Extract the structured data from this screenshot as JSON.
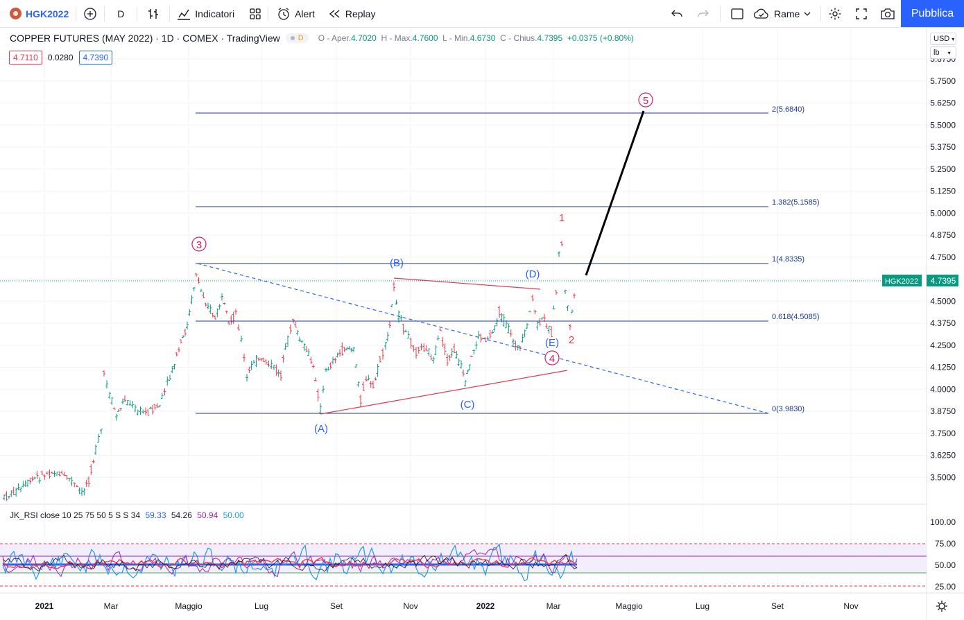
{
  "toolbar": {
    "symbol": "HGK2022",
    "interval": "D",
    "indicators": "Indicatori",
    "alert": "Alert",
    "replay": "Replay",
    "sync": "Rame",
    "publish": "Pubblica"
  },
  "legend": {
    "title": "COPPER FUTURES (MAY 2022) · 1D · COMEX · TradingView",
    "badge": "D",
    "open_label": "O - Aper.",
    "open": "4.7020",
    "high_label": "H - Max.",
    "high": "4.7600",
    "low_label": "L - Min.",
    "low": "4.6730",
    "close_label": "C - Chius.",
    "close": "4.7395",
    "change": "+0.0375 (+0.80%)"
  },
  "pricebox": {
    "sell": "4.7110",
    "spread": "0.0280",
    "buy": "4.7390"
  },
  "units": {
    "currency": "USD",
    "unit": "lb"
  },
  "price_axis": [
    "5.8750",
    "5.7500",
    "5.6250",
    "5.5000",
    "5.3750",
    "5.2500",
    "5.1250",
    "5.0000",
    "4.8750",
    "4.7500",
    "4.6250",
    "4.5000",
    "4.3750",
    "4.2500",
    "4.1250",
    "4.0000",
    "3.8750",
    "3.7500",
    "3.6250",
    "3.5000"
  ],
  "last_price": {
    "symbol": "HGK2022",
    "price": "4.7395"
  },
  "fib_levels": [
    "2(5.6840)",
    "1.382(5.1585)",
    "1(4.8335)",
    "0.618(4.5085)",
    "0(3.9830)"
  ],
  "wave_labels": {
    "w3": "3",
    "w4": "4",
    "w5": "5",
    "A": "(A)",
    "B": "(B)",
    "C": "(C)",
    "D": "(D)",
    "E": "(E)",
    "s1": "1",
    "s2": "2"
  },
  "rsi": {
    "title": "JK_RSI close 10 25 75 50 5 S S 34",
    "v1": "59.33",
    "v2": "54.26",
    "v3": "50.94",
    "v4": "50.00",
    "axis": [
      "100.00",
      "75.00",
      "50.00",
      "25.00"
    ]
  },
  "time_axis": [
    "2021",
    "Mar",
    "Maggio",
    "Lug",
    "Set",
    "Nov",
    "2022",
    "Mar",
    "Maggio",
    "Lug",
    "Set",
    "Nov"
  ],
  "colors": {
    "accent": "#2962ff",
    "up": "#089981",
    "down": "#f23645",
    "fib": "#1f3a93",
    "wave_red": "#d81b60"
  }
}
